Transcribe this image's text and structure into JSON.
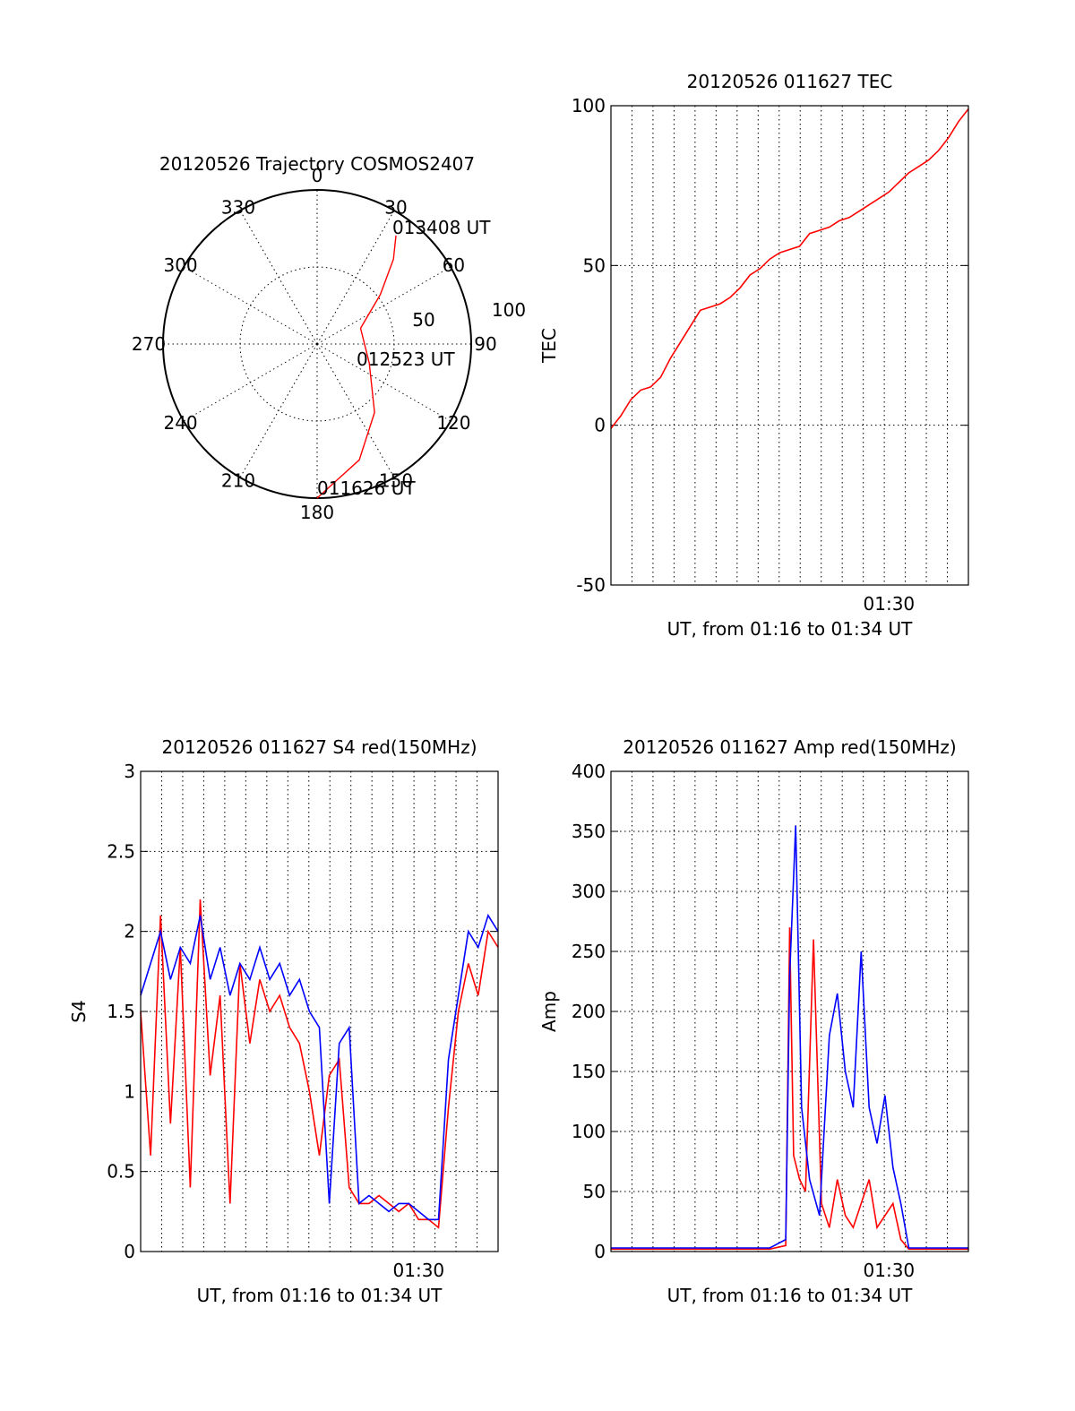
{
  "colors": {
    "red": "#ff0000",
    "blue": "#0000ff",
    "axis": "#000000"
  },
  "chart_data": [
    {
      "type": "polar",
      "title": "20120526 Trajectory COSMOS2407",
      "angle_labels": [
        "0",
        "30",
        "60",
        "90",
        "120",
        "150",
        "180",
        "210",
        "240",
        "270",
        "300",
        "330"
      ],
      "radius_labels": [
        "50",
        "100"
      ],
      "radius_range": [
        0,
        100
      ],
      "series": [
        {
          "color": "red",
          "points": [
            {
              "az": 180,
              "r": 100
            },
            {
              "az": 160,
              "r": 80
            },
            {
              "az": 140,
              "r": 58
            },
            {
              "az": 110,
              "r": 36
            },
            {
              "az": 70,
              "r": 30
            },
            {
              "az": 52,
              "r": 52
            },
            {
              "az": 42,
              "r": 74
            },
            {
              "az": 36,
              "r": 87
            }
          ]
        }
      ],
      "annotations": [
        {
          "text": "013408 UT",
          "az": 36,
          "r": 87
        },
        {
          "text": "012523 UT",
          "az": 100,
          "r": 26
        },
        {
          "text": "011626 UT",
          "az": 180,
          "r": 100
        }
      ]
    },
    {
      "type": "line",
      "title": "20120526 011627 TEC",
      "ylabel": "TEC",
      "xlabel": "UT, from 01:16 to 01:34 UT",
      "ylim": [
        -50,
        100
      ],
      "yticks": [
        "100",
        "50",
        "0",
        "-50"
      ],
      "xlim": [
        0,
        18
      ],
      "xtick_labels": [
        "01:30"
      ],
      "grid": true,
      "series": [
        {
          "color": "red",
          "x": [
            0,
            0.5,
            1,
            1.5,
            2,
            2.5,
            3,
            3.5,
            4,
            4.5,
            5,
            5.5,
            6,
            6.5,
            7,
            7.5,
            8,
            8.5,
            9,
            9.5,
            10,
            10.5,
            11,
            11.5,
            12,
            12.5,
            13,
            13.5,
            14,
            14.5,
            15,
            15.5,
            16,
            16.5,
            17,
            17.5,
            18
          ],
          "y": [
            -1,
            3,
            8,
            11,
            12,
            15,
            21,
            26,
            31,
            36,
            37,
            38,
            40,
            43,
            47,
            49,
            52,
            54,
            55,
            56,
            60,
            61,
            62,
            64,
            65,
            67,
            69,
            71,
            73,
            76,
            79,
            81,
            83,
            86,
            90,
            95,
            99
          ]
        }
      ]
    },
    {
      "type": "line",
      "title": "20120526 011627 S4 red(150MHz)",
      "ylabel": "S4",
      "xlabel": "UT, from 01:16 to 01:34 UT",
      "ylim": [
        0,
        3
      ],
      "yticks": [
        "3",
        "2.5",
        "2",
        "1.5",
        "1",
        "0.5",
        "0"
      ],
      "xlim": [
        0,
        18
      ],
      "xtick_labels": [
        "01:30"
      ],
      "grid": true,
      "series": [
        {
          "color": "red",
          "x": [
            0,
            0.5,
            1,
            1.5,
            2,
            2.5,
            3,
            3.5,
            4,
            4.5,
            5,
            5.5,
            6,
            6.5,
            7,
            7.5,
            8,
            8.5,
            9,
            9.5,
            10,
            10.5,
            11,
            11.5,
            12,
            12.5,
            13,
            13.5,
            14,
            14.5,
            15,
            15.5,
            16,
            16.5,
            17,
            17.5,
            18
          ],
          "y": [
            1.5,
            0.6,
            2.1,
            0.8,
            1.9,
            0.4,
            2.2,
            1.1,
            1.6,
            0.3,
            1.8,
            1.3,
            1.7,
            1.5,
            1.6,
            1.4,
            1.3,
            1.0,
            0.6,
            1.1,
            1.2,
            0.4,
            0.3,
            0.3,
            0.35,
            0.3,
            0.25,
            0.3,
            0.2,
            0.2,
            0.15,
            0.9,
            1.5,
            1.8,
            1.6,
            2.0,
            1.9
          ]
        },
        {
          "color": "blue",
          "x": [
            0,
            0.5,
            1,
            1.5,
            2,
            2.5,
            3,
            3.5,
            4,
            4.5,
            5,
            5.5,
            6,
            6.5,
            7,
            7.5,
            8,
            8.5,
            9,
            9.5,
            10,
            10.5,
            11,
            11.5,
            12,
            12.5,
            13,
            13.5,
            14,
            14.5,
            15,
            15.5,
            16,
            16.5,
            17,
            17.5,
            18
          ],
          "y": [
            1.6,
            1.8,
            2.0,
            1.7,
            1.9,
            1.8,
            2.1,
            1.7,
            1.9,
            1.6,
            1.8,
            1.7,
            1.9,
            1.7,
            1.8,
            1.6,
            1.7,
            1.5,
            1.4,
            0.3,
            1.3,
            1.4,
            0.3,
            0.35,
            0.3,
            0.25,
            0.3,
            0.3,
            0.25,
            0.2,
            0.2,
            1.2,
            1.6,
            2.0,
            1.9,
            2.1,
            2.0
          ]
        }
      ]
    },
    {
      "type": "line",
      "title": "20120526 011627 Amp red(150MHz)",
      "ylabel": "Amp",
      "xlabel": "UT, from 01:16 to 01:34 UT",
      "ylim": [
        0,
        400
      ],
      "yticks": [
        "400",
        "350",
        "300",
        "250",
        "200",
        "150",
        "100",
        "50",
        "0"
      ],
      "xlim": [
        0,
        18
      ],
      "xtick_labels": [
        "01:30"
      ],
      "grid": true,
      "series": [
        {
          "color": "red",
          "x": [
            0,
            2,
            4,
            6,
            8,
            8.8,
            9.0,
            9.2,
            9.5,
            9.8,
            10.2,
            10.6,
            11.0,
            11.4,
            11.8,
            12.2,
            12.6,
            13.0,
            13.4,
            13.8,
            14.2,
            14.6,
            15.0,
            16,
            18
          ],
          "y": [
            2,
            2,
            2,
            2,
            2,
            5,
            270,
            80,
            60,
            50,
            260,
            40,
            20,
            60,
            30,
            20,
            40,
            60,
            20,
            30,
            40,
            10,
            2,
            2,
            2
          ]
        },
        {
          "color": "blue",
          "x": [
            0,
            2,
            4,
            6,
            8,
            8.8,
            9.0,
            9.3,
            9.6,
            10.0,
            10.5,
            11.0,
            11.4,
            11.8,
            12.2,
            12.6,
            13.0,
            13.4,
            13.8,
            14.2,
            14.6,
            15.0,
            16,
            18
          ],
          "y": [
            3,
            3,
            3,
            3,
            3,
            10,
            230,
            355,
            120,
            60,
            30,
            180,
            215,
            150,
            120,
            250,
            120,
            90,
            130,
            70,
            40,
            3,
            3,
            3
          ]
        }
      ]
    }
  ]
}
